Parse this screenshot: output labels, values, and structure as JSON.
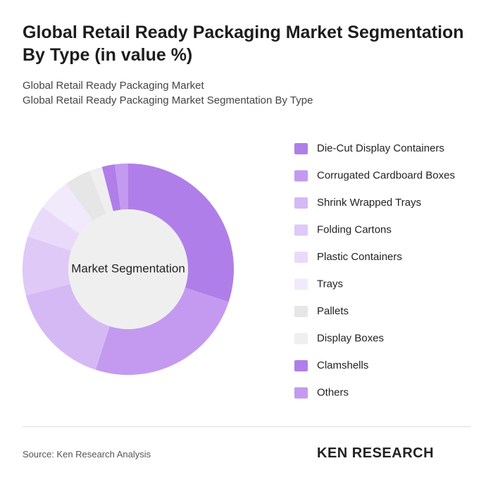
{
  "chart_data": {
    "type": "donut",
    "title": "Global Retail Ready Packaging Market Segmentation By Type (in value %)",
    "subtitle": [
      "Global Retail Ready Packaging Market",
      "Global Retail Ready Packaging Market Segmentation By Type"
    ],
    "center_label": "Market Segmentation",
    "categories": [
      "Die-Cut Display Containers",
      "Corrugated Cardboard Boxes",
      "Shrink Wrapped Trays",
      "Folding Cartons",
      "Plastic Containers",
      "Trays",
      "Pallets",
      "Display Boxes",
      "Clamshells",
      "Others"
    ],
    "values": [
      30,
      25,
      16,
      9,
      5,
      5,
      4,
      2,
      2,
      2
    ],
    "colors": [
      "#b07ee8",
      "#c39af0",
      "#d5b9f5",
      "#dfc9f7",
      "#e9dafa",
      "#f1eafc",
      "#e6e6e6",
      "#efefef",
      "#b07ee8",
      "#c39af0"
    ],
    "legend": "right"
  },
  "footer": {
    "source": "Source: Ken Research Analysis",
    "logo": "KEN RESEARCH"
  }
}
